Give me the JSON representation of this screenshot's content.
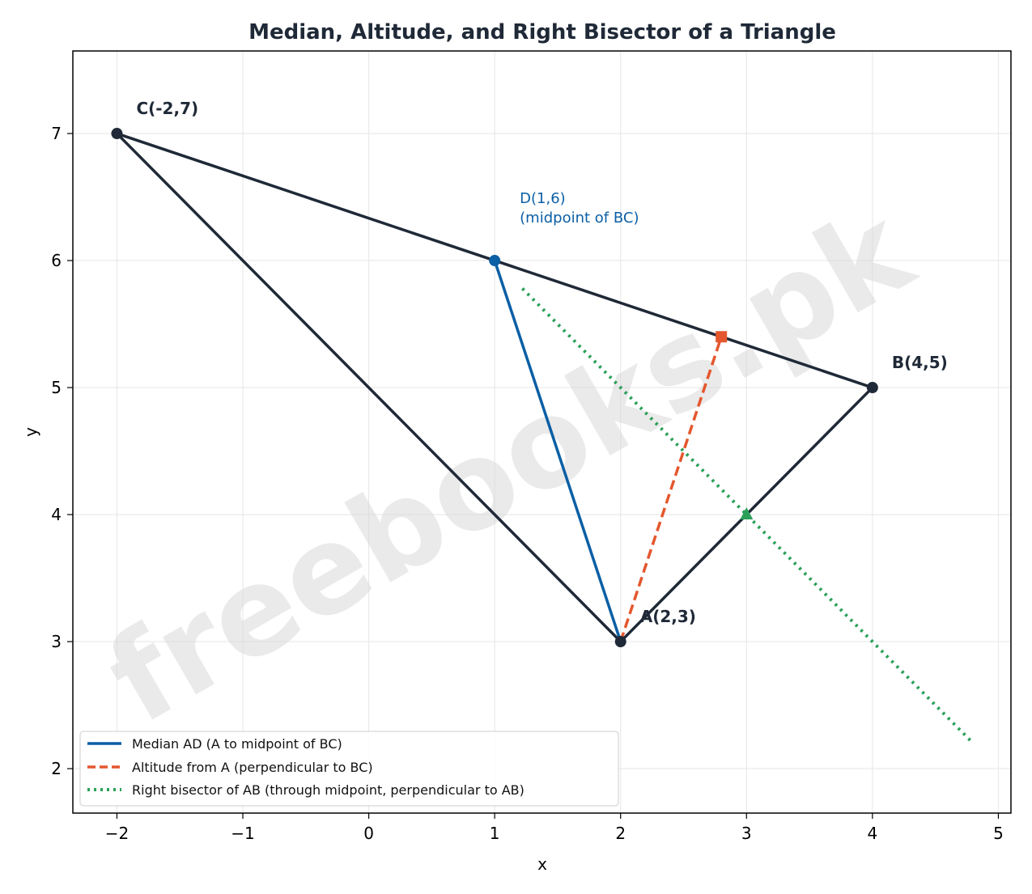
{
  "chart_data": {
    "type": "line",
    "title": "Median, Altitude, and Right Bisector of a Triangle",
    "xlabel": "x",
    "ylabel": "y",
    "xlim": [
      -2.35,
      5.1
    ],
    "ylim": [
      1.65,
      7.65
    ],
    "xticks": [
      -2,
      -1,
      0,
      1,
      2,
      3,
      4,
      5
    ],
    "yticks": [
      2,
      3,
      4,
      5,
      6,
      7
    ],
    "xtick_labels": [
      "−2",
      "−1",
      "0",
      "1",
      "2",
      "3",
      "4",
      "5"
    ],
    "ytick_labels": [
      "2",
      "3",
      "4",
      "5",
      "6",
      "7"
    ],
    "grid": true,
    "legend_position": "lower-left",
    "vertices": [
      {
        "name": "A",
        "x": 2,
        "y": 3,
        "label": "A(2,3)"
      },
      {
        "name": "B",
        "x": 4,
        "y": 5,
        "label": "B(4,5)"
      },
      {
        "name": "C",
        "x": -2,
        "y": 7,
        "label": "C(-2,7)"
      }
    ],
    "midpoint": {
      "x": 1,
      "y": 6,
      "label_line1": "D(1,6)",
      "label_line2": "(midpoint of BC)"
    },
    "altitude_foot": {
      "x": 2.8,
      "y": 5.4
    },
    "ab_midpoint": {
      "x": 3,
      "y": 4
    },
    "series": [
      {
        "name": "Median AD (A to midpoint of BC)",
        "style": "solid",
        "color": "#0b5fa5",
        "x": [
          2,
          1
        ],
        "y": [
          3,
          6
        ]
      },
      {
        "name": "Altitude from A (perpendicular to BC)",
        "style": "dashed",
        "color": "#e4572e",
        "x": [
          2,
          2.8
        ],
        "y": [
          3,
          5.4
        ]
      },
      {
        "name": "Right bisector of AB (through midpoint, perpendicular to AB)",
        "style": "dotted",
        "color": "#2ca05a",
        "x": [
          1.22,
          4.78
        ],
        "y": [
          5.78,
          2.22
        ]
      }
    ],
    "triangle_color": "#1f2937",
    "watermark": "freebooks.pk"
  }
}
